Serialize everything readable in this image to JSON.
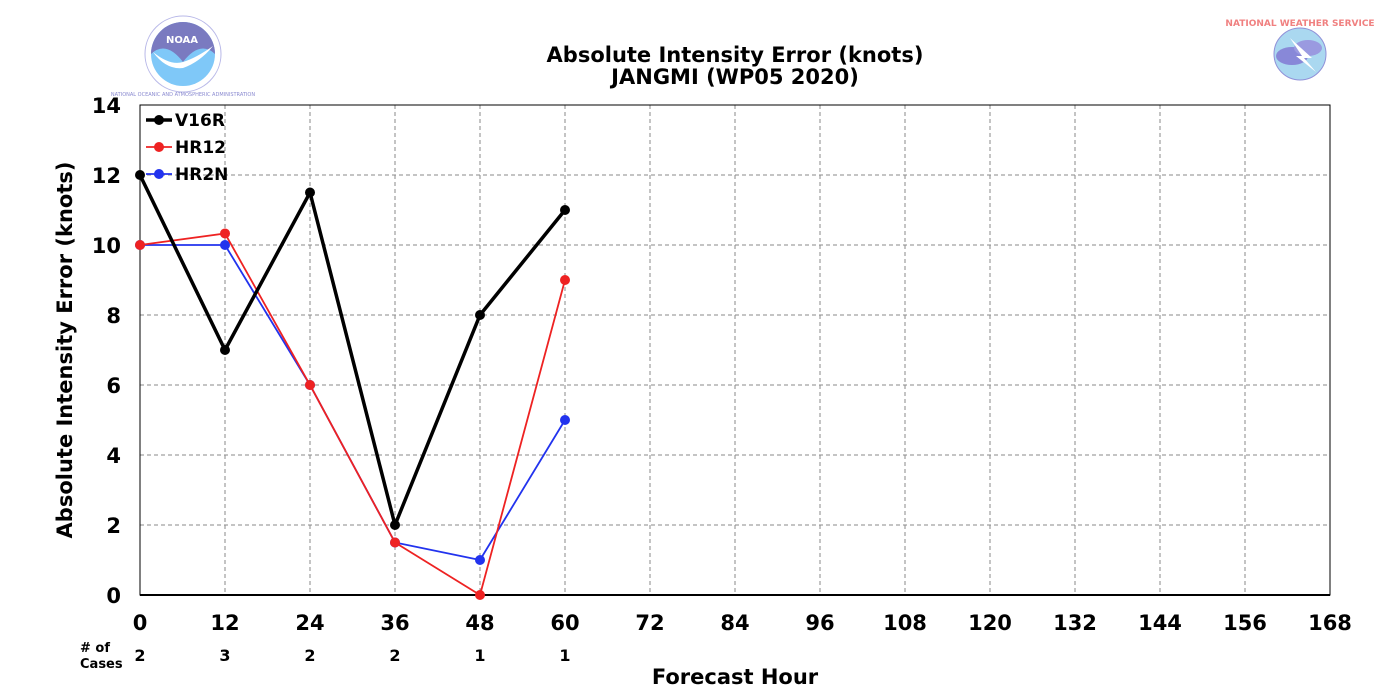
{
  "logos": {
    "left": {
      "name": "NOAA",
      "text": "NOAA",
      "seal_text": "NATIONAL OCEANIC AND ATMOSPHERIC ADMINISTRATION"
    },
    "right": {
      "name": "National Weather Service",
      "text": "NATIONAL WEATHER SERVICE"
    }
  },
  "chart_data": {
    "type": "line",
    "title": "Absolute Intensity Error (knots)",
    "subtitle": "JANGMI (WP05 2020)",
    "xlabel": "Forecast Hour",
    "ylabel": "Absolute Intensity Error (knots)",
    "xlim": [
      0,
      168
    ],
    "ylim": [
      0,
      14
    ],
    "x_ticks": [
      0,
      12,
      24,
      36,
      48,
      60,
      72,
      84,
      96,
      108,
      120,
      132,
      144,
      156,
      168
    ],
    "y_ticks": [
      0,
      2,
      4,
      6,
      8,
      10,
      12,
      14
    ],
    "grid": true,
    "legend_position": "top-left",
    "series": [
      {
        "name": "V16R",
        "color": "#000000",
        "x": [
          0,
          12,
          24,
          36,
          48,
          60
        ],
        "values": [
          12,
          7,
          11.5,
          2,
          8,
          11
        ]
      },
      {
        "name": "HR12",
        "color": "#ee2222",
        "x": [
          0,
          12,
          24,
          36,
          48,
          60
        ],
        "values": [
          10,
          10.33,
          6,
          1.5,
          0,
          9
        ]
      },
      {
        "name": "HR2N",
        "color": "#2233ee",
        "x": [
          0,
          12,
          24,
          36,
          48,
          60
        ],
        "values": [
          10,
          10,
          6,
          1.5,
          1,
          5
        ]
      }
    ],
    "cases": {
      "label_line1": "# of",
      "label_line2": "Cases",
      "x": [
        0,
        12,
        24,
        36,
        48,
        60
      ],
      "values": [
        2,
        3,
        2,
        2,
        1,
        1
      ]
    }
  }
}
